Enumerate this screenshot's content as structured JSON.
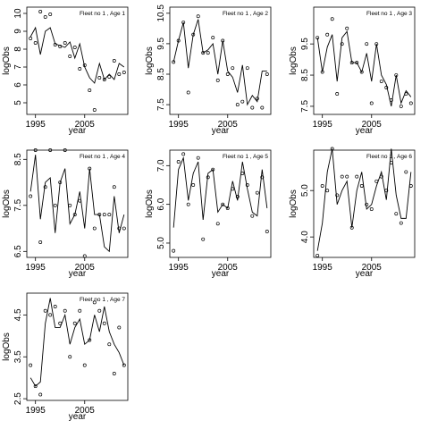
{
  "chart_data": [
    {
      "type": "line",
      "title": "Fleet no 1 , Age 1",
      "xlabel": "year",
      "ylabel": "logObs",
      "x": [
        1994,
        1995,
        1996,
        1997,
        1998,
        1999,
        2000,
        2001,
        2002,
        2003,
        2004,
        2005,
        2006,
        2007,
        2008,
        2009,
        2010,
        2011,
        2012,
        2013
      ],
      "xlim": [
        1993.24,
        2013.76
      ],
      "xticks": [
        1995,
        2005
      ],
      "ylim": [
        4.35,
        10.35
      ],
      "yticks": [
        5,
        6,
        7,
        8,
        9,
        10
      ],
      "series": [
        {
          "style": "line",
          "color": "#000000",
          "values": [
            8.7,
            9.2,
            7.7,
            9.0,
            9.2,
            8.3,
            8.2,
            8.1,
            8.4,
            7.5,
            8.3,
            7.0,
            6.4,
            6.1,
            7.2,
            6.3,
            6.6,
            6.3,
            7.2,
            7.0
          ]
        },
        {
          "style": "points",
          "color": "#000000",
          "values": [
            8.6,
            8.35,
            10.1,
            9.8,
            9.95,
            8.25,
            8.15,
            8.35,
            7.6,
            8.1,
            6.9,
            7.1,
            5.7,
            4.6,
            6.4,
            6.3,
            6.45,
            7.35,
            6.6,
            6.7
          ]
        }
      ]
    },
    {
      "type": "line",
      "title": "Fleet no 1 , Age 2",
      "xlabel": "year",
      "ylabel": "logObs",
      "x": [
        1994,
        1995,
        1996,
        1997,
        1998,
        1999,
        2000,
        2001,
        2002,
        2003,
        2004,
        2005,
        2006,
        2007,
        2008,
        2009,
        2010,
        2011,
        2012,
        2013
      ],
      "xlim": [
        1993.24,
        2013.76
      ],
      "xticks": [
        1995,
        2005
      ],
      "ylim": [
        7.18,
        10.7
      ],
      "yticks": [
        7.5,
        8.5,
        9.5,
        10.5
      ],
      "series": [
        {
          "style": "line",
          "color": "#000000",
          "values": [
            8.9,
            9.6,
            10.2,
            8.7,
            9.8,
            10.3,
            9.2,
            9.3,
            9.5,
            8.5,
            9.6,
            8.6,
            8.4,
            7.9,
            8.8,
            7.5,
            7.8,
            7.6,
            8.6,
            8.6
          ]
        },
        {
          "style": "points",
          "color": "#000000",
          "values": [
            8.9,
            9.6,
            10.2,
            7.9,
            9.8,
            10.4,
            9.2,
            9.2,
            9.7,
            8.3,
            9.6,
            8.5,
            8.7,
            7.5,
            7.6,
            8.7,
            7.4,
            7.7,
            7.4,
            8.5
          ]
        }
      ]
    },
    {
      "type": "line",
      "title": "Fleet no 1 , Age 3",
      "xlabel": "year",
      "ylabel": "logObs",
      "x": [
        1994,
        1995,
        1996,
        1997,
        1998,
        1999,
        2000,
        2001,
        2002,
        2003,
        2004,
        2005,
        2006,
        2007,
        2008,
        2009,
        2010,
        2011,
        2012,
        2013
      ],
      "xlim": [
        1993.24,
        2013.76
      ],
      "xticks": [
        1995,
        2005
      ],
      "ylim": [
        7.24,
        10.68
      ],
      "yticks": [
        7.5,
        8.5,
        9.5
      ],
      "series": [
        {
          "style": "line",
          "color": "#000000",
          "values": [
            9.7,
            8.6,
            9.4,
            9.8,
            8.3,
            9.7,
            9.9,
            8.9,
            8.9,
            8.6,
            9.2,
            8.3,
            9.5,
            8.5,
            8.2,
            7.5,
            8.5,
            7.6,
            8.0,
            7.8
          ]
        },
        {
          "style": "points",
          "color": "#000000",
          "values": [
            9.7,
            8.6,
            9.8,
            10.3,
            7.9,
            9.5,
            10.0,
            8.9,
            8.9,
            8.6,
            9.5,
            7.6,
            9.5,
            8.3,
            8.1,
            7.7,
            8.5,
            7.5,
            7.9,
            7.6
          ]
        }
      ]
    },
    {
      "type": "line",
      "title": "Fleet no 1 , Age 4",
      "xlabel": "year",
      "ylabel": "logObs",
      "x": [
        1994,
        1995,
        1996,
        1997,
        1998,
        1999,
        2000,
        2001,
        2002,
        2003,
        2004,
        2005,
        2006,
        2007,
        2008,
        2009,
        2010,
        2011,
        2012,
        2013
      ],
      "xlim": [
        1993.24,
        2013.76
      ],
      "xticks": [
        1995,
        2005
      ],
      "ylim": [
        6.37,
        8.7
      ],
      "yticks": [
        6.5,
        7.5,
        8.5
      ],
      "series": [
        {
          "style": "line",
          "color": "#000000",
          "values": [
            7.8,
            8.6,
            7.2,
            8.0,
            8.1,
            6.9,
            8.0,
            8.3,
            7.1,
            7.3,
            7.8,
            7.0,
            8.3,
            7.3,
            7.3,
            6.6,
            6.5,
            7.7,
            6.9,
            7.3
          ]
        },
        {
          "style": "points",
          "color": "#000000",
          "values": [
            7.7,
            8.7,
            6.7,
            7.9,
            8.7,
            7.5,
            8.0,
            8.7,
            7.5,
            7.3,
            7.6,
            6.4,
            8.3,
            7.0,
            7.3,
            7.3,
            7.3,
            7.9,
            7.0,
            7.0
          ]
        }
      ]
    },
    {
      "type": "line",
      "title": "Fleet no 1 , Age 5",
      "xlabel": "year",
      "ylabel": "logObs",
      "x": [
        1994,
        1995,
        1996,
        1997,
        1998,
        1999,
        2000,
        2001,
        2002,
        2003,
        2004,
        2005,
        2006,
        2007,
        2008,
        2009,
        2010,
        2011,
        2012,
        2013
      ],
      "xlim": [
        1993.24,
        2013.76
      ],
      "xticks": [
        1995,
        2005
      ],
      "ylim": [
        4.63,
        7.4
      ],
      "yticks": [
        {
          "value": 5,
          "label": "5.0"
        },
        {
          "value": 6,
          "label": "6.0"
        },
        {
          "value": 7,
          "label": "7.0"
        }
      ],
      "series": [
        {
          "style": "line",
          "color": "#000000",
          "values": [
            5.4,
            6.9,
            7.2,
            6.1,
            6.8,
            7.1,
            5.6,
            6.8,
            6.9,
            5.8,
            6.0,
            5.9,
            6.6,
            6.1,
            7.1,
            6.4,
            5.8,
            5.7,
            6.9,
            5.9
          ]
        },
        {
          "style": "points",
          "color": "#000000",
          "values": [
            4.8,
            7.1,
            7.3,
            6.0,
            6.5,
            7.2,
            5.1,
            6.7,
            6.9,
            5.5,
            6.0,
            5.9,
            6.4,
            6.2,
            6.8,
            6.5,
            5.7,
            6.3,
            6.7,
            5.3
          ]
        }
      ]
    },
    {
      "type": "line",
      "title": "Fleet no 1 , Age 6",
      "xlabel": "year",
      "ylabel": "logObs",
      "x": [
        1994,
        1995,
        1996,
        1997,
        1998,
        1999,
        2000,
        2001,
        2002,
        2003,
        2004,
        2005,
        2006,
        2007,
        2008,
        2009,
        2010,
        2011,
        2012,
        2013
      ],
      "xlim": [
        1993.24,
        2013.76
      ],
      "xticks": [
        1995,
        2005
      ],
      "ylim": [
        3.56,
        5.87
      ],
      "yticks": [
        {
          "value": 4,
          "label": "4.0"
        },
        {
          "value": 5,
          "label": "5.0"
        }
      ],
      "series": [
        {
          "style": "line",
          "color": "#000000",
          "values": [
            3.7,
            4.3,
            5.4,
            5.9,
            4.7,
            5.0,
            5.2,
            4.2,
            5.0,
            5.4,
            4.6,
            4.7,
            5.1,
            5.4,
            4.8,
            5.9,
            4.9,
            4.4,
            4.4,
            5.4
          ]
        },
        {
          "style": "points",
          "color": "#000000",
          "values": [
            3.6,
            5.1,
            5.0,
            5.9,
            4.9,
            5.3,
            5.3,
            4.2,
            5.3,
            5.1,
            4.7,
            4.6,
            5.2,
            5.3,
            5.0,
            5.6,
            4.5,
            4.3,
            5.4,
            5.1
          ]
        }
      ]
    },
    {
      "type": "line",
      "title": "Fleet no 1 , Age 7",
      "xlabel": "year",
      "ylabel": "logObs",
      "x": [
        1994,
        1995,
        1996,
        1997,
        1998,
        1999,
        2000,
        2001,
        2002,
        2003,
        2004,
        2005,
        2006,
        2007,
        2008,
        2009,
        2010,
        2011,
        2012,
        2013
      ],
      "xlim": [
        1993.24,
        2013.76
      ],
      "xticks": [
        1995,
        2005
      ],
      "ylim": [
        2.46,
        5.02
      ],
      "yticks": [
        2.5,
        3.5,
        4.5
      ],
      "series": [
        {
          "style": "line",
          "color": "#000000",
          "values": [
            3.0,
            2.8,
            2.9,
            4.3,
            4.9,
            4.2,
            4.2,
            4.5,
            3.8,
            4.2,
            4.4,
            3.8,
            3.9,
            4.5,
            4.1,
            4.7,
            4.1,
            3.8,
            3.6,
            3.3
          ]
        },
        {
          "style": "points",
          "color": "#000000",
          "values": [
            3.3,
            2.8,
            2.6,
            4.6,
            4.5,
            4.7,
            4.3,
            4.6,
            3.5,
            4.3,
            4.6,
            3.3,
            3.9,
            4.8,
            4.6,
            4.3,
            3.8,
            3.1,
            4.2,
            3.3
          ]
        }
      ]
    }
  ]
}
